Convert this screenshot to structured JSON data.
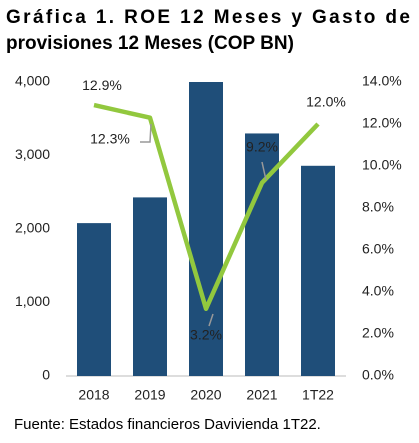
{
  "chart_data": {
    "type": "bar_line",
    "title": "Gráfica 1. ROE 12 Meses y Gasto de provisiones 12 Meses (COP BN)",
    "source": "Fuente: Estados financieros Davivienda 1T22.",
    "categories": [
      "2018",
      "2019",
      "2020",
      "2021",
      "1T22"
    ],
    "series": [
      {
        "type": "bar",
        "color": "#1f4e79",
        "values": [
          2080,
          2430,
          4000,
          3300,
          2860
        ]
      },
      {
        "type": "line",
        "axis": "y2",
        "color": "#92c83e",
        "values": [
          12.9,
          12.3,
          3.2,
          9.2,
          12.0
        ],
        "value_labels": [
          "12.9%",
          "12.3%",
          "3.2%",
          "9.2%",
          "12.0%"
        ]
      }
    ],
    "ylim": [
      0,
      4000
    ],
    "yticks": [
      0,
      {
        "value": 1000,
        "label": "1,000"
      },
      {
        "value": 2000,
        "label": "2,000"
      },
      {
        "value": 3000,
        "label": "3,000"
      },
      {
        "value": 4000,
        "label": "4,000"
      }
    ],
    "y2lim": [
      0,
      14
    ],
    "y2ticks": [
      {
        "value": 0,
        "label": "0.0%"
      },
      {
        "value": 2,
        "label": "2.0%"
      },
      {
        "value": 4,
        "label": "4.0%"
      },
      {
        "value": 6,
        "label": "6.0%"
      },
      {
        "value": 8,
        "label": "8.0%"
      },
      {
        "value": 10,
        "label": "10.0%"
      },
      {
        "value": 12,
        "label": "12.0%"
      },
      {
        "value": 14,
        "label": "14.0%"
      }
    ]
  }
}
